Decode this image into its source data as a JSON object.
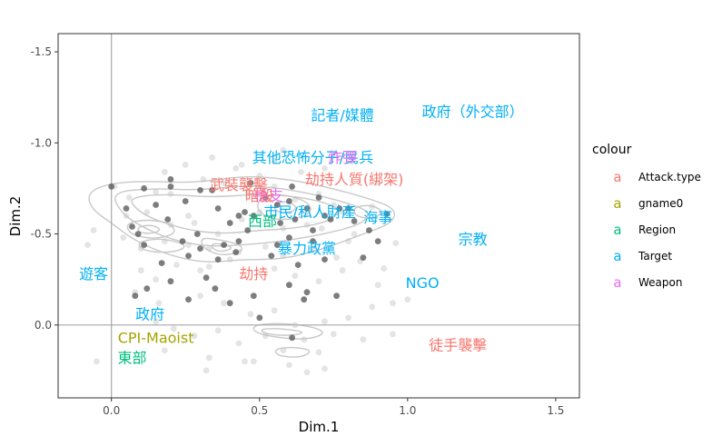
{
  "chart_data": {
    "type": "scatter",
    "title": "",
    "xlabel": "Dim.1",
    "ylabel": "Dim.2",
    "xlim": [
      -0.18,
      1.58
    ],
    "ylim": [
      -1.6,
      0.4
    ],
    "y_reversed": true,
    "x_ticks": [
      0.0,
      0.5,
      1.0,
      1.5
    ],
    "x_tick_labels": [
      "0.0",
      "0.5",
      "1.0",
      "1.5"
    ],
    "y_ticks": [
      -1.5,
      -1.0,
      -0.5,
      0.0
    ],
    "y_tick_labels": [
      "-1.5",
      "-1.0",
      "-0.5",
      "0.0"
    ],
    "grid": false,
    "reference_lines": {
      "x": 0,
      "y": 0
    },
    "legend": {
      "title": "colour",
      "placement": "right",
      "key_glyph": "a",
      "entries": [
        {
          "name": "Attack.type",
          "color": "#F8766D"
        },
        {
          "name": "gname0",
          "color": "#A3A500"
        },
        {
          "name": "Region",
          "color": "#00BF7D"
        },
        {
          "name": "Target",
          "color": "#00B0F6"
        },
        {
          "name": "Weapon",
          "color": "#E76BF3"
        }
      ]
    },
    "labels": [
      {
        "text": "政府（外交部）",
        "x": 1.22,
        "y": -1.17,
        "group": "Target"
      },
      {
        "text": "記者/媒體",
        "x": 0.78,
        "y": -1.15,
        "group": "Target"
      },
      {
        "text": "其他恐怖分子/民兵",
        "x": 0.68,
        "y": -0.92,
        "group": "Target"
      },
      {
        "text": "炸彈",
        "x": 0.78,
        "y": -0.92,
        "group": "Weapon"
      },
      {
        "text": "劫持人質(綁架)",
        "x": 0.82,
        "y": -0.8,
        "group": "Attack.type"
      },
      {
        "text": "武裝襲擊",
        "x": 0.43,
        "y": -0.77,
        "group": "Attack.type"
      },
      {
        "text": "槍支",
        "x": 0.53,
        "y": -0.71,
        "group": "Weapon"
      },
      {
        "text": "暗殺",
        "x": 0.5,
        "y": -0.71,
        "group": "Attack.type"
      },
      {
        "text": "市民/私人財產",
        "x": 0.67,
        "y": -0.62,
        "group": "Target"
      },
      {
        "text": "海事",
        "x": 0.9,
        "y": -0.59,
        "group": "Target"
      },
      {
        "text": "西部",
        "x": 0.51,
        "y": -0.57,
        "group": "Region"
      },
      {
        "text": "宗教",
        "x": 1.22,
        "y": -0.47,
        "group": "Target"
      },
      {
        "text": "暴力政黨",
        "x": 0.66,
        "y": -0.42,
        "group": "Target"
      },
      {
        "text": "遊客",
        "x": -0.06,
        "y": -0.28,
        "group": "Target"
      },
      {
        "text": "劫持",
        "x": 0.48,
        "y": -0.28,
        "group": "Attack.type"
      },
      {
        "text": "NGO",
        "x": 1.05,
        "y": -0.23,
        "group": "Target"
      },
      {
        "text": "政府",
        "x": 0.13,
        "y": -0.06,
        "group": "Target"
      },
      {
        "text": "CPI-Maoist",
        "x": 0.15,
        "y": 0.07,
        "group": "gname0"
      },
      {
        "text": "東部",
        "x": 0.07,
        "y": 0.18,
        "group": "Region"
      },
      {
        "text": "徒手襲擊",
        "x": 1.17,
        "y": 0.11,
        "group": "Attack.type"
      }
    ],
    "points": [
      [
        0.01,
        -0.76
      ],
      [
        0.06,
        -0.7
      ],
      [
        0.15,
        -0.73
      ],
      [
        0.2,
        -0.72
      ],
      [
        0.31,
        -0.8
      ],
      [
        0.38,
        -0.78
      ],
      [
        0.46,
        -0.73
      ],
      [
        0.55,
        -0.76
      ],
      [
        0.62,
        -0.69
      ],
      [
        0.7,
        -0.72
      ],
      [
        0.75,
        -0.66
      ],
      [
        0.78,
        -0.62
      ],
      [
        0.88,
        -0.65
      ],
      [
        0.12,
        -0.62
      ],
      [
        0.2,
        -0.55
      ],
      [
        0.28,
        -0.56
      ],
      [
        0.36,
        -0.5
      ],
      [
        0.44,
        -0.58
      ],
      [
        0.5,
        -0.62
      ],
      [
        0.58,
        -0.53
      ],
      [
        0.66,
        -0.55
      ],
      [
        0.71,
        -0.53
      ],
      [
        0.82,
        -0.5
      ],
      [
        0.04,
        -0.48
      ],
      [
        0.1,
        -0.42
      ],
      [
        0.18,
        -0.46
      ],
      [
        0.26,
        -0.44
      ],
      [
        0.33,
        -0.42
      ],
      [
        0.43,
        -0.4
      ],
      [
        0.52,
        -0.43
      ],
      [
        0.58,
        -0.38
      ],
      [
        0.68,
        -0.42
      ],
      [
        0.76,
        -0.37
      ],
      [
        0.84,
        -0.35
      ],
      [
        0.1,
        -0.3
      ],
      [
        0.15,
        -0.25
      ],
      [
        0.22,
        -0.33
      ],
      [
        0.33,
        -0.32
      ],
      [
        0.4,
        -0.36
      ],
      [
        0.55,
        -0.31
      ],
      [
        0.62,
        -0.27
      ],
      [
        0.7,
        -0.24
      ],
      [
        0.78,
        -0.3
      ],
      [
        0.92,
        -0.31
      ],
      [
        0.95,
        -0.12
      ],
      [
        0.08,
        -0.18
      ],
      [
        0.16,
        -0.12
      ],
      [
        0.3,
        -0.16
      ],
      [
        0.38,
        -0.12
      ],
      [
        0.47,
        -0.06
      ],
      [
        0.55,
        -0.08
      ],
      [
        0.62,
        0.0
      ],
      [
        0.72,
        -0.02
      ],
      [
        0.8,
        -0.04
      ],
      [
        0.88,
        -0.1
      ],
      [
        1.0,
        -0.14
      ],
      [
        0.21,
        0.02
      ],
      [
        0.28,
        0.06
      ],
      [
        0.36,
        0.03
      ],
      [
        0.43,
        0.1
      ],
      [
        0.52,
        0.06
      ],
      [
        0.58,
        0.14
      ],
      [
        0.65,
        0.08
      ],
      [
        0.7,
        0.15
      ],
      [
        0.75,
        0.05
      ],
      [
        0.85,
        0.08
      ],
      [
        0.95,
        0.05
      ],
      [
        0.18,
        0.14
      ],
      [
        0.33,
        0.18
      ],
      [
        0.48,
        0.2
      ],
      [
        0.6,
        0.22
      ],
      [
        0.72,
        0.24
      ],
      [
        -0.05,
        0.2
      ],
      [
        0.32,
        0.25
      ],
      [
        0.45,
        0.2
      ],
      [
        0.66,
        0.26
      ],
      [
        0.25,
        -0.88
      ],
      [
        0.42,
        -0.86
      ],
      [
        0.55,
        -0.9
      ],
      [
        0.64,
        -0.84
      ],
      [
        0.18,
        -0.84
      ],
      [
        0.34,
        -0.92
      ],
      [
        0.5,
        -0.82
      ],
      [
        0.72,
        -0.86
      ],
      [
        0.05,
        -0.6
      ],
      [
        -0.06,
        -0.52
      ],
      [
        0.96,
        -0.45
      ],
      [
        0.15,
        -0.02
      ],
      [
        -0.08,
        -0.44
      ],
      [
        0.58,
        -0.96
      ],
      [
        0.9,
        -0.78
      ],
      [
        0.26,
        -0.6
      ],
      [
        0.9,
        -0.22
      ],
      [
        0.44,
        -0.88
      ],
      [
        0.8,
        -0.46
      ],
      [
        0.3,
        -0.3
      ]
    ],
    "highlight_points": [
      [
        0.0,
        -0.76
      ],
      [
        0.11,
        -0.75
      ],
      [
        0.2,
        -0.76
      ],
      [
        0.34,
        -0.74
      ],
      [
        0.47,
        -0.78
      ],
      [
        0.56,
        -0.66
      ],
      [
        0.72,
        -0.6
      ],
      [
        0.05,
        -0.64
      ],
      [
        0.15,
        -0.66
      ],
      [
        0.25,
        -0.68
      ],
      [
        0.36,
        -0.64
      ],
      [
        0.45,
        -0.62
      ],
      [
        0.52,
        -0.7
      ],
      [
        0.66,
        -0.64
      ],
      [
        0.7,
        -0.7
      ],
      [
        0.77,
        -0.64
      ],
      [
        0.82,
        -0.57
      ],
      [
        0.87,
        -0.52
      ],
      [
        0.07,
        -0.54
      ],
      [
        0.19,
        -0.58
      ],
      [
        0.29,
        -0.5
      ],
      [
        0.4,
        -0.56
      ],
      [
        0.48,
        -0.6
      ],
      [
        0.57,
        -0.56
      ],
      [
        0.62,
        -0.58
      ],
      [
        0.68,
        -0.52
      ],
      [
        0.74,
        -0.58
      ],
      [
        0.93,
        -0.61
      ],
      [
        0.11,
        -0.44
      ],
      [
        0.24,
        -0.46
      ],
      [
        0.3,
        -0.42
      ],
      [
        0.38,
        -0.44
      ],
      [
        0.46,
        -0.52
      ],
      [
        0.56,
        -0.44
      ],
      [
        0.68,
        -0.46
      ],
      [
        0.17,
        -0.34
      ],
      [
        0.26,
        -0.38
      ],
      [
        0.36,
        -0.36
      ],
      [
        0.42,
        -0.4
      ],
      [
        0.54,
        -0.38
      ],
      [
        0.63,
        -0.33
      ],
      [
        0.72,
        -0.36
      ],
      [
        0.85,
        -0.37
      ],
      [
        0.08,
        -0.16
      ],
      [
        0.2,
        -0.24
      ],
      [
        0.32,
        -0.26
      ],
      [
        0.48,
        -0.16
      ],
      [
        0.6,
        -0.22
      ],
      [
        0.66,
        -0.18
      ],
      [
        0.76,
        -0.16
      ],
      [
        0.09,
        -0.5
      ],
      [
        0.26,
        -0.14
      ],
      [
        0.12,
        -0.2
      ],
      [
        0.43,
        -0.46
      ],
      [
        0.6,
        -0.48
      ],
      [
        0.8,
        -0.64
      ],
      [
        0.43,
        -0.6
      ],
      [
        0.65,
        -0.14
      ],
      [
        0.35,
        -0.2
      ],
      [
        0.4,
        -0.12
      ],
      [
        0.3,
        -0.74
      ],
      [
        0.6,
        -0.68
      ],
      [
        0.61,
        -0.76
      ],
      [
        0.61,
        0.07
      ],
      [
        0.9,
        -0.46
      ],
      [
        0.5,
        -0.04
      ],
      [
        0.2,
        -0.8
      ]
    ],
    "density_contours": [
      [
        [
          -0.08,
          -0.73
        ],
        [
          0.0,
          -0.78
        ],
        [
          0.12,
          -0.79
        ],
        [
          0.28,
          -0.78
        ],
        [
          0.45,
          -0.82
        ],
        [
          0.6,
          -0.8
        ],
        [
          0.72,
          -0.76
        ],
        [
          0.86,
          -0.7
        ],
        [
          0.96,
          -0.64
        ],
        [
          0.95,
          -0.56
        ],
        [
          0.85,
          -0.5
        ],
        [
          0.72,
          -0.42
        ],
        [
          0.58,
          -0.36
        ],
        [
          0.44,
          -0.36
        ],
        [
          0.32,
          -0.34
        ],
        [
          0.2,
          -0.38
        ],
        [
          0.08,
          -0.46
        ],
        [
          0.0,
          -0.56
        ],
        [
          -0.07,
          -0.64
        ]
      ],
      [
        [
          0.0,
          -0.73
        ],
        [
          0.14,
          -0.75
        ],
        [
          0.3,
          -0.74
        ],
        [
          0.46,
          -0.77
        ],
        [
          0.62,
          -0.74
        ],
        [
          0.78,
          -0.68
        ],
        [
          0.88,
          -0.62
        ],
        [
          0.84,
          -0.55
        ],
        [
          0.72,
          -0.5
        ],
        [
          0.58,
          -0.46
        ],
        [
          0.45,
          -0.44
        ],
        [
          0.32,
          -0.43
        ],
        [
          0.2,
          -0.47
        ],
        [
          0.1,
          -0.54
        ],
        [
          0.03,
          -0.62
        ]
      ],
      [
        [
          0.06,
          -0.7
        ],
        [
          0.18,
          -0.72
        ],
        [
          0.34,
          -0.7
        ],
        [
          0.5,
          -0.72
        ],
        [
          0.66,
          -0.7
        ],
        [
          0.78,
          -0.64
        ],
        [
          0.74,
          -0.57
        ],
        [
          0.62,
          -0.53
        ],
        [
          0.5,
          -0.52
        ],
        [
          0.38,
          -0.5
        ],
        [
          0.26,
          -0.52
        ],
        [
          0.14,
          -0.58
        ],
        [
          0.08,
          -0.64
        ]
      ],
      [
        [
          0.5,
          -0.7
        ],
        [
          0.58,
          -0.72
        ],
        [
          0.66,
          -0.68
        ],
        [
          0.68,
          -0.62
        ],
        [
          0.62,
          -0.58
        ],
        [
          0.54,
          -0.58
        ],
        [
          0.49,
          -0.63
        ]
      ],
      [
        [
          0.55,
          -0.67
        ],
        [
          0.6,
          -0.68
        ],
        [
          0.63,
          -0.64
        ],
        [
          0.59,
          -0.61
        ],
        [
          0.55,
          -0.63
        ]
      ],
      [
        [
          0.05,
          -0.56
        ],
        [
          0.12,
          -0.58
        ],
        [
          0.2,
          -0.56
        ],
        [
          0.22,
          -0.5
        ],
        [
          0.14,
          -0.47
        ],
        [
          0.06,
          -0.5
        ]
      ],
      [
        [
          0.09,
          -0.54
        ],
        [
          0.14,
          -0.55
        ],
        [
          0.17,
          -0.52
        ],
        [
          0.13,
          -0.5
        ],
        [
          0.09,
          -0.51
        ]
      ],
      [
        [
          0.3,
          -0.48
        ],
        [
          0.36,
          -0.47
        ],
        [
          0.44,
          -0.44
        ],
        [
          0.44,
          -0.4
        ],
        [
          0.37,
          -0.38
        ],
        [
          0.31,
          -0.42
        ]
      ],
      [
        [
          0.34,
          -0.45
        ],
        [
          0.39,
          -0.44
        ],
        [
          0.41,
          -0.42
        ],
        [
          0.37,
          -0.4
        ],
        [
          0.34,
          -0.42
        ]
      ],
      [
        [
          0.08,
          -0.45
        ],
        [
          0.16,
          -0.48
        ],
        [
          0.26,
          -0.44
        ],
        [
          0.22,
          -0.4
        ],
        [
          0.12,
          -0.4
        ]
      ],
      [
        [
          0.82,
          -0.65
        ],
        [
          0.88,
          -0.66
        ],
        [
          0.92,
          -0.62
        ],
        [
          0.88,
          -0.58
        ],
        [
          0.82,
          -0.6
        ]
      ],
      [
        [
          0.48,
          0.0
        ],
        [
          0.56,
          -0.01
        ],
        [
          0.64,
          0.0
        ],
        [
          0.7,
          0.02
        ],
        [
          0.72,
          0.05
        ],
        [
          0.66,
          0.08
        ],
        [
          0.56,
          0.07
        ],
        [
          0.48,
          0.04
        ]
      ],
      [
        [
          0.5,
          0.02
        ],
        [
          0.58,
          0.02
        ],
        [
          0.66,
          0.04
        ],
        [
          0.6,
          0.06
        ],
        [
          0.52,
          0.05
        ]
      ],
      [
        [
          0.55,
          0.13
        ],
        [
          0.62,
          0.12
        ],
        [
          0.68,
          0.14
        ],
        [
          0.64,
          0.18
        ],
        [
          0.56,
          0.17
        ]
      ]
    ]
  }
}
